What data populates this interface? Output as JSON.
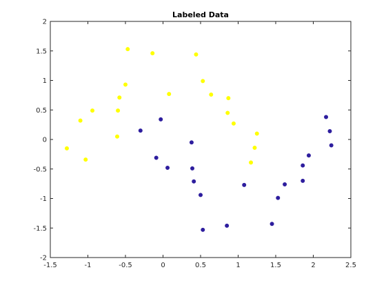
{
  "chart_data": {
    "type": "scatter",
    "title": "Labeled Data",
    "xlabel": "",
    "ylabel": "",
    "xlim": [
      -1.5,
      2.5
    ],
    "ylim": [
      -2,
      2
    ],
    "xticks": [
      -1.5,
      -1,
      -0.5,
      0,
      0.5,
      1,
      1.5,
      2,
      2.5
    ],
    "yticks": [
      -2,
      -1.5,
      -1,
      -0.5,
      0,
      0.5,
      1,
      1.5,
      2
    ],
    "xtick_labels": [
      "-1.5",
      "-1",
      "-0.5",
      "0",
      "0.5",
      "1",
      "1.5",
      "2",
      "2.5"
    ],
    "ytick_labels": [
      "-2",
      "-1.5",
      "-1",
      "-0.5",
      "0",
      "0.5",
      "1",
      "1.5",
      "2"
    ],
    "grid": false,
    "legend": "none",
    "series": [
      {
        "color": "#ffff00",
        "points": [
          [
            -1.28,
            -0.15
          ],
          [
            -1.1,
            0.32
          ],
          [
            -1.03,
            -0.34
          ],
          [
            -0.94,
            0.49
          ],
          [
            -0.61,
            0.05
          ],
          [
            -0.6,
            0.49
          ],
          [
            -0.58,
            0.71
          ],
          [
            -0.5,
            0.93
          ],
          [
            -0.47,
            1.53
          ],
          [
            -0.14,
            1.46
          ],
          [
            0.08,
            0.77
          ],
          [
            0.44,
            1.44
          ],
          [
            0.53,
            0.99
          ],
          [
            0.64,
            0.76
          ],
          [
            0.86,
            0.45
          ],
          [
            0.87,
            0.7
          ],
          [
            0.94,
            0.27
          ],
          [
            1.17,
            -0.39
          ],
          [
            1.22,
            -0.14
          ],
          [
            1.25,
            0.1
          ]
        ]
      },
      {
        "color": "#2e1e9e",
        "points": [
          [
            -0.3,
            0.15
          ],
          [
            -0.09,
            -0.31
          ],
          [
            -0.03,
            0.34
          ],
          [
            0.06,
            -0.48
          ],
          [
            0.38,
            -0.05
          ],
          [
            0.39,
            -0.49
          ],
          [
            0.41,
            -0.71
          ],
          [
            0.5,
            -0.94
          ],
          [
            0.53,
            -1.53
          ],
          [
            0.85,
            -1.46
          ],
          [
            1.08,
            -0.77
          ],
          [
            1.45,
            -1.43
          ],
          [
            1.53,
            -0.99
          ],
          [
            1.62,
            -0.76
          ],
          [
            1.86,
            -0.7
          ],
          [
            1.86,
            -0.44
          ],
          [
            1.94,
            -0.27
          ],
          [
            2.17,
            0.38
          ],
          [
            2.22,
            0.14
          ],
          [
            2.24,
            -0.1
          ]
        ]
      }
    ]
  }
}
